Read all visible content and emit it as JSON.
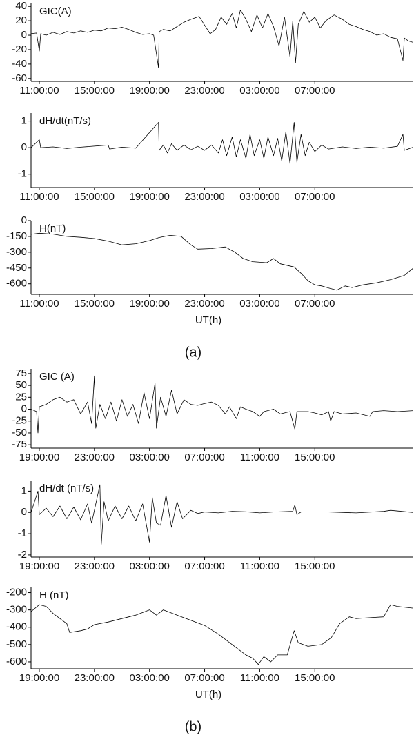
{
  "chart_data": [
    {
      "type": "line",
      "ylabel": "GIC(A)",
      "color": "#000000",
      "xlim": [
        10.4,
        38.15
      ],
      "ylim": [
        -64,
        44
      ],
      "xticks": [
        {
          "value": 11,
          "label": "11:00:00"
        },
        {
          "value": 15,
          "label": "15:00:00"
        },
        {
          "value": 19,
          "label": "19:00:00"
        },
        {
          "value": 23,
          "label": "23:00:00"
        },
        {
          "value": 27,
          "label": "03:00:00"
        },
        {
          "value": 31,
          "label": "07:00:00"
        }
      ],
      "yticks": [
        40,
        20,
        0,
        -20,
        -40,
        -60
      ],
      "x": [
        10.4,
        10.8,
        11.0,
        11.1,
        11.5,
        12,
        12.5,
        13,
        13.5,
        14,
        14.5,
        15,
        15.5,
        16,
        16.5,
        17,
        17.5,
        18,
        18.5,
        19,
        19.3,
        19.65,
        19.7,
        20,
        20.5,
        21,
        21.5,
        22,
        22.6,
        23,
        23.4,
        23.8,
        24.2,
        24.6,
        25,
        25.3,
        25.6,
        26,
        26.4,
        26.8,
        27.2,
        27.6,
        28,
        28.4,
        28.8,
        29.2,
        29.4,
        29.6,
        29.8,
        30.2,
        30.6,
        31,
        31.4,
        31.8,
        32.4,
        33,
        33.5,
        34,
        34.5,
        35,
        35.5,
        36,
        36.5,
        37,
        37.4,
        37.5,
        37.8,
        38.15
      ],
      "values": [
        2,
        3,
        -22,
        2,
        0,
        4,
        1,
        5,
        3,
        6,
        4,
        7,
        6,
        10,
        9,
        11,
        8,
        4,
        1,
        2,
        0,
        -45,
        5,
        8,
        6,
        12,
        18,
        22,
        26,
        14,
        2,
        8,
        25,
        15,
        30,
        10,
        35,
        22,
        5,
        28,
        10,
        30,
        12,
        -15,
        25,
        -30,
        20,
        -38,
        15,
        33,
        18,
        25,
        10,
        20,
        28,
        22,
        15,
        12,
        8,
        5,
        0,
        2,
        -3,
        -5,
        -35,
        -4,
        -8,
        -10
      ]
    },
    {
      "type": "line",
      "ylabel": "dH/dt(nT/s)",
      "color": "#000000",
      "xlim": [
        10.4,
        38.15
      ],
      "ylim": [
        -1.5,
        1.3
      ],
      "xticks": [
        {
          "value": 11,
          "label": "11:00:00"
        },
        {
          "value": 15,
          "label": "15:00:00"
        },
        {
          "value": 19,
          "label": "19:00:00"
        },
        {
          "value": 23,
          "label": "23:00:00"
        },
        {
          "value": 27,
          "label": "03:00:00"
        },
        {
          "value": 31,
          "label": "07:00:00"
        }
      ],
      "yticks": [
        1,
        0,
        -1
      ],
      "x": [
        10.4,
        11,
        11.1,
        12,
        13,
        14,
        16,
        16.1,
        17,
        18,
        19.65,
        19.7,
        20,
        20.3,
        20.6,
        21,
        21.5,
        22,
        22.5,
        23,
        23.5,
        24,
        24.3,
        24.6,
        25,
        25.3,
        25.6,
        26,
        26.3,
        26.6,
        27,
        27.3,
        27.6,
        28,
        28.3,
        28.6,
        28.9,
        29.2,
        29.5,
        29.7,
        30,
        30.3,
        30.6,
        31,
        31.5,
        32,
        33,
        34,
        35,
        36,
        37,
        37.4,
        37.5,
        38.15
      ],
      "values": [
        0,
        0.3,
        0,
        0.03,
        -0.03,
        0.02,
        0.1,
        -0.05,
        0.02,
        -0.02,
        0.95,
        -0.1,
        0.1,
        -0.2,
        0.15,
        -0.1,
        0.1,
        -0.08,
        0.05,
        -0.1,
        0.1,
        -0.2,
        0.3,
        -0.3,
        0.4,
        -0.35,
        0.3,
        -0.4,
        0.5,
        -0.3,
        0.3,
        -0.4,
        0.4,
        -0.3,
        0.35,
        -0.5,
        0.6,
        -0.6,
        0.95,
        -0.55,
        0.5,
        -0.3,
        0.2,
        -0.15,
        0.1,
        -0.05,
        0.03,
        -0.03,
        0.02,
        -0.02,
        0.05,
        0.5,
        -0.1,
        0.02
      ]
    },
    {
      "type": "line",
      "ylabel": "H(nT)",
      "xlabel": "UT(h)",
      "caption": "(a)",
      "color": "#000000",
      "xlim": [
        10.4,
        38.15
      ],
      "ylim": [
        -700,
        0
      ],
      "xticks": [
        {
          "value": 11,
          "label": "11:00:00"
        },
        {
          "value": 15,
          "label": "15:00:00"
        },
        {
          "value": 19,
          "label": "19:00:00"
        },
        {
          "value": 23,
          "label": "23:00:00"
        },
        {
          "value": 27,
          "label": "03:00:00"
        },
        {
          "value": 31,
          "label": "07:00:00"
        }
      ],
      "yticks": [
        0,
        -150,
        -300,
        -450,
        -600
      ],
      "x": [
        10.4,
        11,
        12,
        13,
        14,
        15,
        16,
        17,
        18,
        19,
        19.7,
        20.5,
        21.3,
        22,
        22.5,
        23.5,
        24.5,
        25.2,
        25.8,
        26.5,
        27.5,
        28,
        28.5,
        29.5,
        30,
        30.5,
        31,
        31.5,
        32,
        32.6,
        33.2,
        33.7,
        34.5,
        35.5,
        36.5,
        37.5,
        38.15
      ],
      "values": [
        -130,
        -120,
        -128,
        -150,
        -158,
        -170,
        -195,
        -230,
        -220,
        -190,
        -160,
        -140,
        -150,
        -230,
        -270,
        -265,
        -250,
        -300,
        -360,
        -390,
        -400,
        -360,
        -410,
        -440,
        -500,
        -570,
        -610,
        -620,
        -640,
        -660,
        -620,
        -635,
        -610,
        -590,
        -560,
        -520,
        -450
      ]
    },
    {
      "type": "line",
      "ylabel": "GIC (A)",
      "color": "#000000",
      "xlim": [
        18.4,
        46.15
      ],
      "ylim": [
        -82,
        85
      ],
      "xticks": [
        {
          "value": 19,
          "label": "19:00:00"
        },
        {
          "value": 23,
          "label": "23:00:00"
        },
        {
          "value": 27,
          "label": "03:00:00"
        },
        {
          "value": 31,
          "label": "07:00:00"
        },
        {
          "value": 35,
          "label": "11:00:00"
        },
        {
          "value": 39,
          "label": "15:00:00"
        }
      ],
      "yticks": [
        75,
        50,
        25,
        0,
        -25,
        -50,
        -75
      ],
      "x": [
        18.4,
        18.8,
        18.9,
        19,
        19.5,
        20,
        20.5,
        21,
        21.5,
        22,
        22.5,
        22.8,
        23,
        23.1,
        23.4,
        23.8,
        24.2,
        24.6,
        25,
        25.4,
        25.8,
        26.2,
        26.6,
        27,
        27.4,
        27.5,
        27.8,
        28.2,
        28.6,
        29,
        29.5,
        30,
        30.5,
        31,
        31.5,
        32,
        32.5,
        32.8,
        33.3,
        33.6,
        34,
        34.5,
        35,
        35.3,
        36,
        36.5,
        37.2,
        37.55,
        37.7,
        38.5,
        39,
        39.5,
        40,
        40.15,
        40.4,
        41,
        42,
        43,
        43.2,
        44,
        45,
        46.15
      ],
      "values": [
        0,
        -5,
        -50,
        5,
        10,
        20,
        25,
        15,
        20,
        -10,
        15,
        -30,
        70,
        -40,
        10,
        -20,
        15,
        -25,
        20,
        -15,
        10,
        -30,
        35,
        -20,
        55,
        -40,
        25,
        -15,
        40,
        -10,
        20,
        10,
        8,
        12,
        15,
        8,
        -10,
        5,
        -20,
        5,
        0,
        -5,
        -15,
        -5,
        0,
        -10,
        -5,
        -42,
        -5,
        -5,
        -8,
        -12,
        -5,
        -25,
        -5,
        -10,
        -8,
        -15,
        -5,
        -3,
        -5,
        -3
      ]
    },
    {
      "type": "line",
      "ylabel": "dH/dt (nT/s)",
      "color": "#000000",
      "xlim": [
        18.4,
        46.15
      ],
      "ylim": [
        -2.1,
        1.5
      ],
      "xticks": [
        {
          "value": 19,
          "label": "19:00:00"
        },
        {
          "value": 23,
          "label": "23:00:00"
        },
        {
          "value": 27,
          "label": "03:00:00"
        },
        {
          "value": 31,
          "label": "07:00:00"
        },
        {
          "value": 35,
          "label": "11:00:00"
        },
        {
          "value": 39,
          "label": "15:00:00"
        }
      ],
      "yticks": [
        1,
        0,
        -1,
        -2
      ],
      "x": [
        18.4,
        18.9,
        19,
        19.5,
        20,
        20.5,
        21,
        21.5,
        22,
        22.5,
        22.8,
        23.4,
        23.5,
        23.7,
        24,
        24.5,
        25,
        25.5,
        26,
        26.5,
        27,
        27.2,
        27.5,
        27.8,
        28.2,
        28.6,
        29,
        29.4,
        30,
        30.5,
        31,
        32,
        33,
        34,
        35,
        36,
        37.4,
        37.55,
        37.7,
        38,
        40,
        42,
        44,
        44.5,
        46.15
      ],
      "values": [
        0,
        1,
        -0.1,
        0.2,
        -0.2,
        0.3,
        -0.3,
        0.25,
        -0.35,
        0.4,
        -0.5,
        1.3,
        -1.5,
        0.5,
        -0.4,
        0.3,
        -0.3,
        0.3,
        -0.4,
        0.4,
        -1.4,
        0.7,
        -0.5,
        -0.6,
        0.8,
        -0.7,
        0.5,
        -0.3,
        0.1,
        -0.05,
        0.02,
        -0.02,
        0.05,
        0.03,
        -0.02,
        0.02,
        0.05,
        0.35,
        -0.1,
        0.02,
        0.02,
        -0.02,
        0.05,
        0.1,
        0
      ]
    },
    {
      "type": "line",
      "ylabel": "H (nT)",
      "xlabel": "UT(h)",
      "caption": "(b)",
      "color": "#000000",
      "xlim": [
        18.4,
        46.15
      ],
      "ylim": [
        -640,
        -170
      ],
      "xticks": [
        {
          "value": 19,
          "label": "19:00:00"
        },
        {
          "value": 23,
          "label": "23:00:00"
        },
        {
          "value": 27,
          "label": "03:00:00"
        },
        {
          "value": 31,
          "label": "07:00:00"
        },
        {
          "value": 35,
          "label": "11:00:00"
        },
        {
          "value": 39,
          "label": "15:00:00"
        }
      ],
      "yticks": [
        -200,
        -300,
        -400,
        -500,
        -600
      ],
      "x": [
        18.4,
        19,
        19.5,
        20,
        21,
        21.2,
        22,
        22.5,
        23,
        24,
        25,
        26,
        27,
        27.5,
        28,
        29,
        30,
        31,
        32,
        33,
        34,
        34.5,
        34.9,
        35.3,
        35.8,
        36.3,
        37,
        37.5,
        37.8,
        38.5,
        39.5,
        40.2,
        40.8,
        41.5,
        42,
        43,
        44,
        44.5,
        45,
        46.15
      ],
      "values": [
        -310,
        -270,
        -280,
        -320,
        -380,
        -430,
        -420,
        -410,
        -385,
        -370,
        -350,
        -330,
        -300,
        -330,
        -300,
        -330,
        -360,
        -390,
        -440,
        -500,
        -560,
        -580,
        -615,
        -570,
        -600,
        -560,
        -560,
        -420,
        -490,
        -510,
        -500,
        -460,
        -380,
        -340,
        -350,
        -345,
        -340,
        -270,
        -280,
        -290
      ]
    }
  ]
}
